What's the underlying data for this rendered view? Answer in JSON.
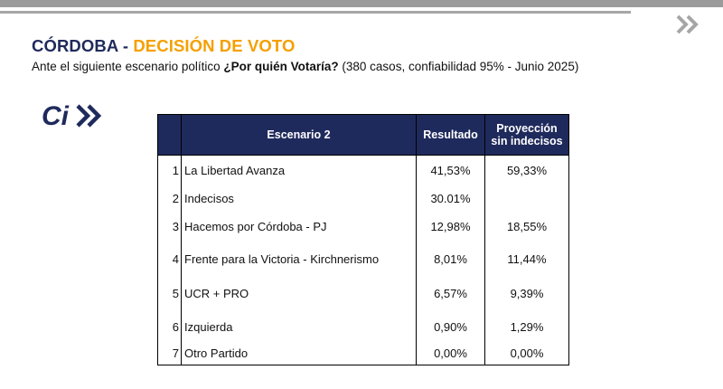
{
  "header": {
    "title_part1": "CÓRDOBA - ",
    "title_part2": "DECISIÓN DE VOTO",
    "subtitle_pre": "Ante el siguiente escenario político ",
    "subtitle_question": "¿Por quién Votaría?",
    "subtitle_post": " (380 casos, confiabilidad 95% - Junio 2025)"
  },
  "logo": {
    "text": "Ci"
  },
  "table": {
    "headers": {
      "number": "",
      "scenario": "Escenario 2",
      "result": "Resultado",
      "projection_line1": "Proyección",
      "projection_line2": "sin indecisos"
    },
    "rows": [
      {
        "num": "1",
        "name": "La Libertad Avanza",
        "result": "41,53%",
        "projection": "59,33%"
      },
      {
        "num": "2",
        "name": "Indecisos",
        "result": "30.01%",
        "projection": ""
      },
      {
        "num": "3",
        "name": "Hacemos por Córdoba - PJ",
        "result": "12,98%",
        "projection": "18,55%"
      },
      {
        "num": "4",
        "name": "Frente para la Victoria - Kirchnerismo",
        "result": "8,01%",
        "projection": "11,44%"
      },
      {
        "num": "5",
        "name": "UCR + PRO",
        "result": "6,57%",
        "projection": "9,39%"
      },
      {
        "num": "6",
        "name": "Izquierda",
        "result": "0,90%",
        "projection": "1,29%"
      },
      {
        "num": "7",
        "name": "Otro Partido",
        "result": "0,00%",
        "projection": "0,00%"
      }
    ]
  }
}
